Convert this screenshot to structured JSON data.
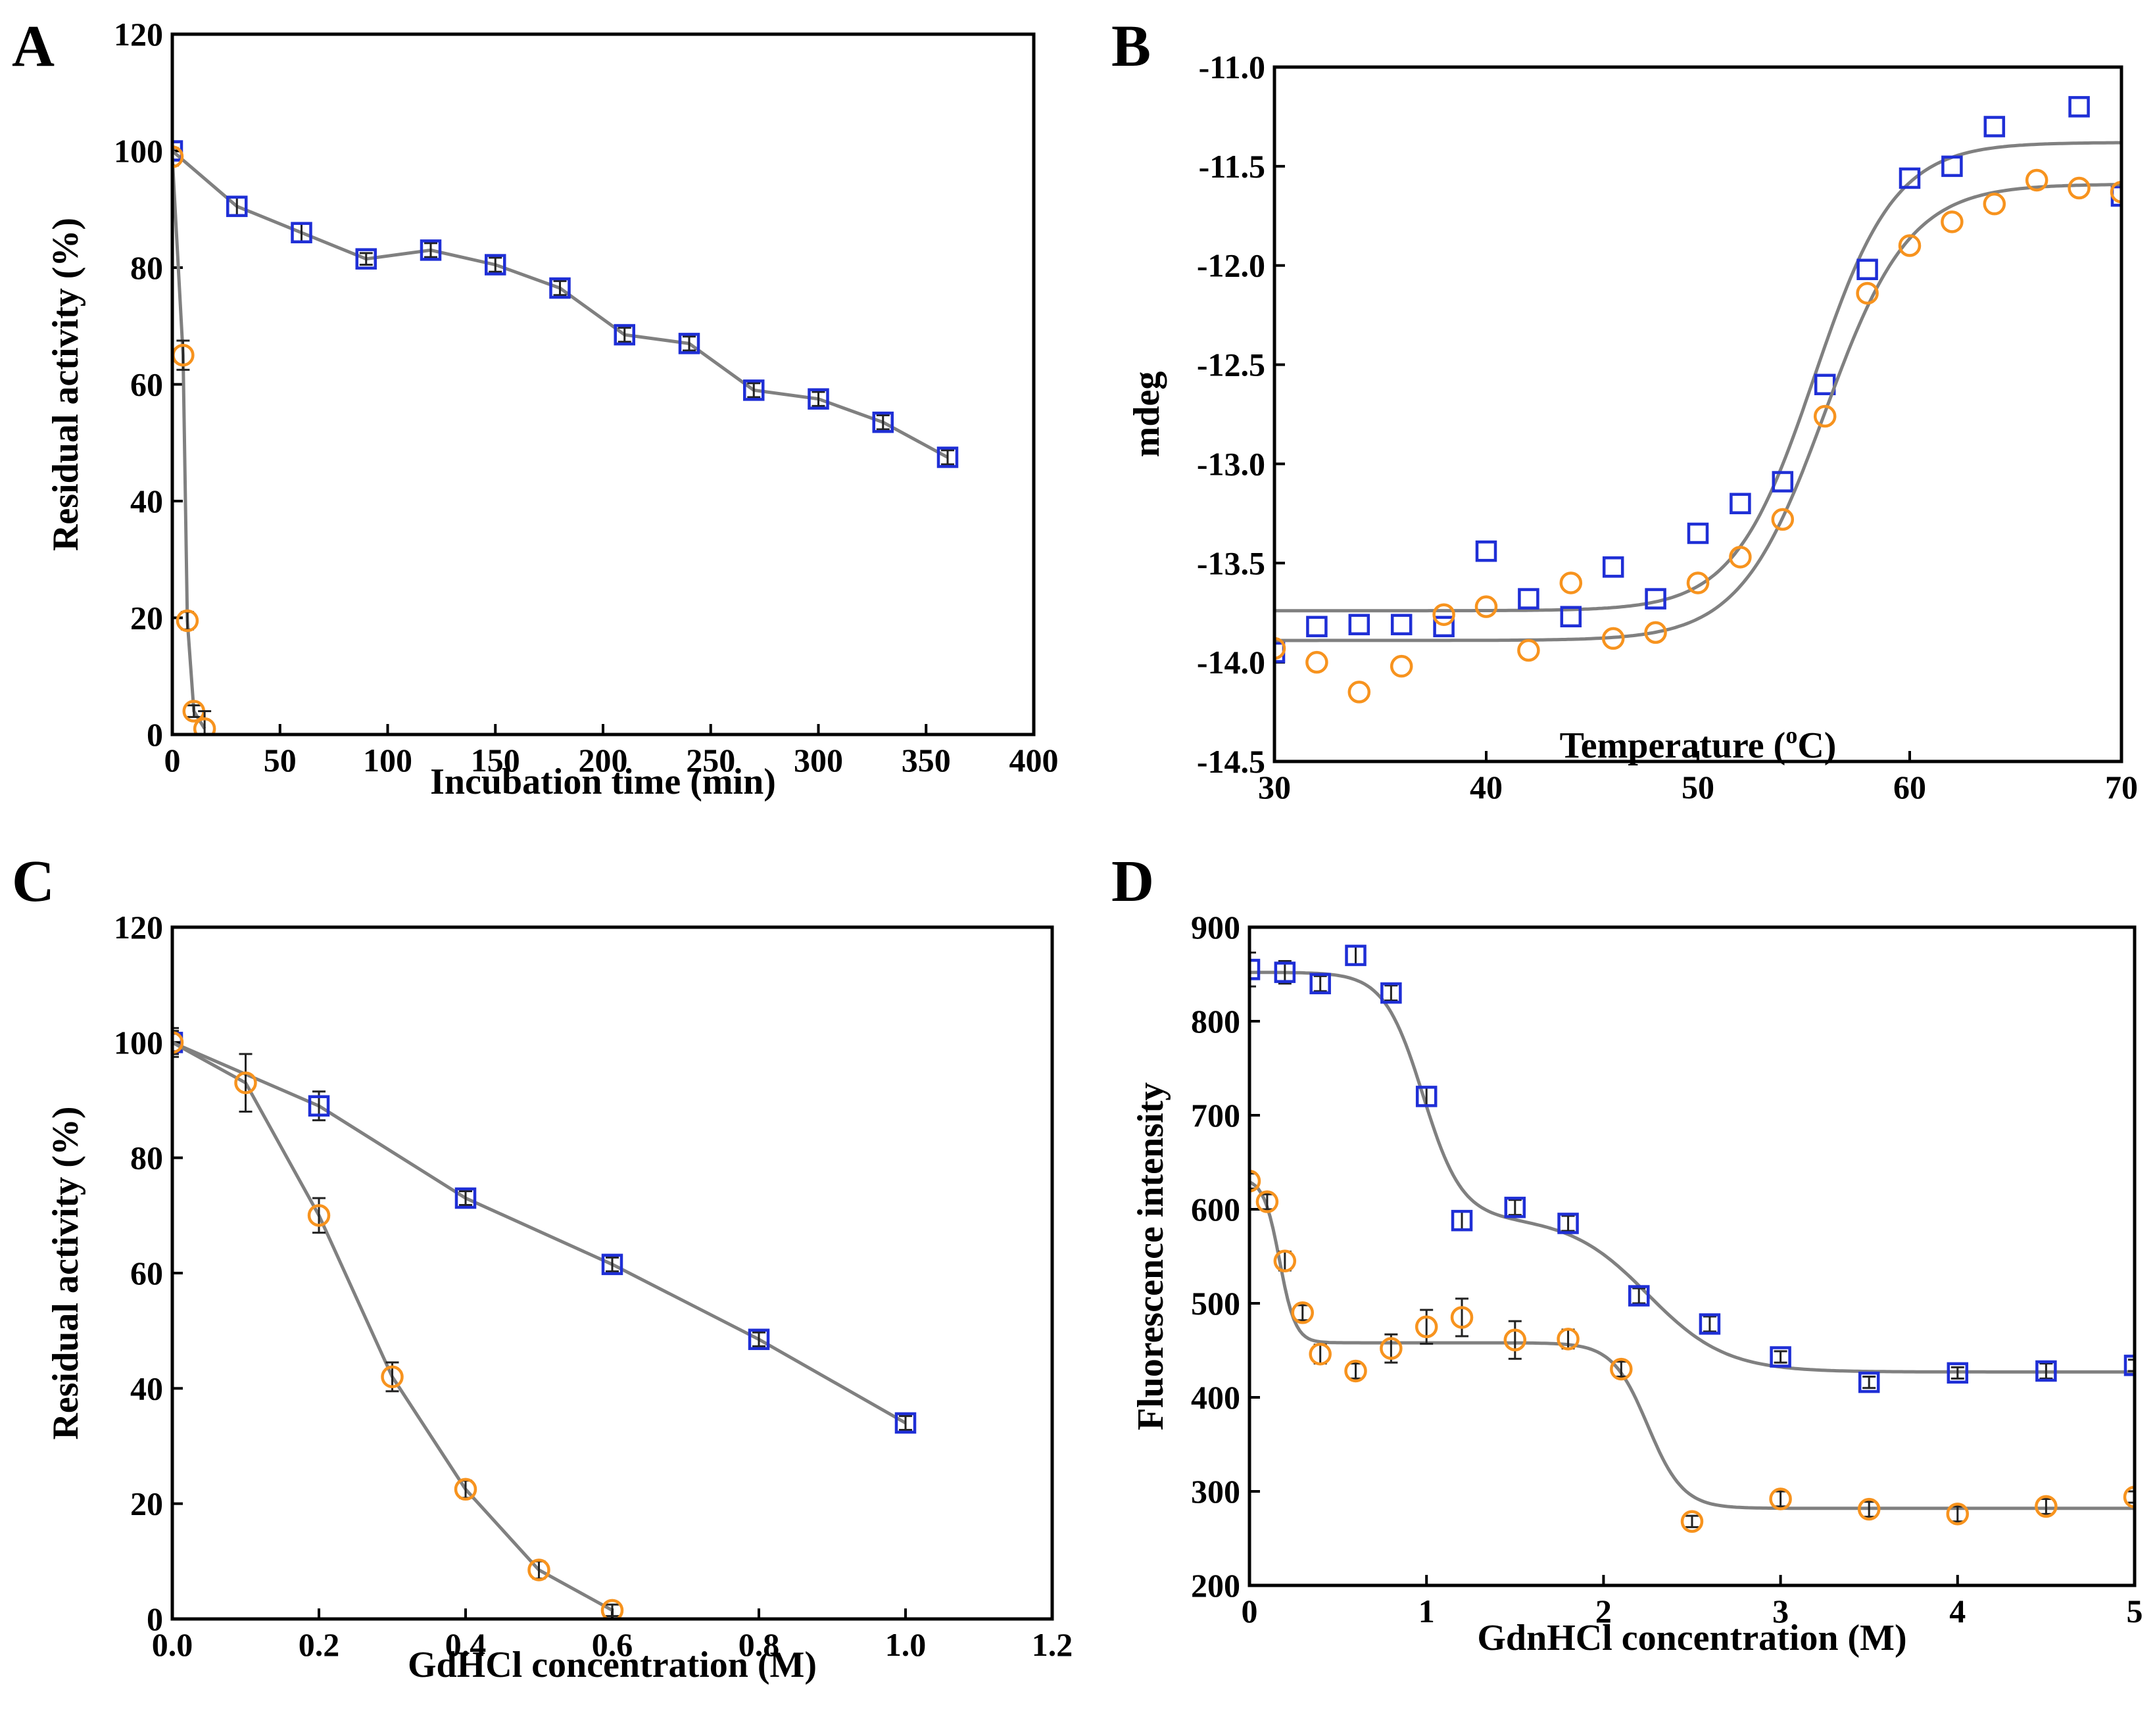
{
  "colors": {
    "series1": "#1f2fd6",
    "series2": "#f7931e",
    "fit": "#808080",
    "errorbar": "#222222"
  },
  "chart_data": [
    {
      "id": "A",
      "panel_label": "A",
      "type": "line",
      "xlabel": "Incubation time (min)",
      "ylabel": "Residual activity (%)",
      "xlim": [
        0,
        400
      ],
      "ylim": [
        0,
        120
      ],
      "xticks": [
        0,
        50,
        100,
        150,
        200,
        250,
        300,
        350,
        400
      ],
      "yticks": [
        0,
        20,
        40,
        60,
        80,
        100,
        120
      ],
      "xtick_labels": [
        "0",
        "50",
        "100",
        "150",
        "200",
        "250",
        "300",
        "350",
        "400"
      ],
      "ytick_labels": [
        "0",
        "20",
        "40",
        "60",
        "80",
        "100",
        "120"
      ],
      "series": [
        {
          "name": "square",
          "marker": "square",
          "color": "#1f2fd6",
          "x": [
            0,
            30,
            60,
            90,
            120,
            150,
            180,
            210,
            240,
            270,
            300,
            330,
            360
          ],
          "y": [
            100,
            90.5,
            86,
            81.5,
            83,
            80.5,
            76.5,
            68.5,
            67,
            59,
            57.5,
            53.5,
            47.5
          ],
          "err": [
            1.5,
            1.5,
            1.5,
            1,
            1.2,
            1.2,
            1.2,
            1.2,
            1.2,
            1.2,
            1.2,
            1.2,
            1.2
          ],
          "connect": true
        },
        {
          "name": "circle",
          "marker": "circle",
          "color": "#f7931e",
          "x": [
            0,
            5,
            7,
            10,
            15
          ],
          "y": [
            99,
            65,
            19.5,
            4,
            1
          ],
          "err": [
            1.5,
            2.5,
            1.5,
            1,
            3
          ],
          "connect": true
        }
      ]
    },
    {
      "id": "B",
      "panel_label": "B",
      "type": "scatter",
      "xlabel_pre": "Temperature (",
      "xlabel_sup": "o",
      "xlabel_post": "C)",
      "ylabel": "mdeg",
      "xlim": [
        30,
        70
      ],
      "ylim": [
        -14.5,
        -11.0
      ],
      "xticks": [
        30,
        40,
        50,
        60,
        70
      ],
      "yticks": [
        -14.5,
        -14.0,
        -13.5,
        -13.0,
        -12.5,
        -12.0,
        -11.5,
        -11.0
      ],
      "xtick_labels": [
        "30",
        "40",
        "50",
        "60",
        "70"
      ],
      "ytick_labels": [
        "-14.5",
        "-14.0",
        "-13.5",
        "-13.0",
        "-12.5",
        "-12.0",
        "-11.5",
        "-11.0"
      ],
      "series": [
        {
          "name": "square",
          "marker": "square",
          "color": "#1f2fd6",
          "x": [
            30,
            32,
            34,
            36,
            38,
            40,
            42,
            44,
            46,
            48,
            50,
            52,
            54,
            56,
            58,
            60,
            62,
            64,
            68,
            70
          ],
          "y": [
            -13.95,
            -13.82,
            -13.81,
            -13.81,
            -13.82,
            -13.44,
            -13.68,
            -13.77,
            -13.52,
            -13.68,
            -13.35,
            -13.2,
            -13.09,
            -12.6,
            -12.02,
            -11.56,
            -11.5,
            -11.3,
            -11.2,
            -11.65
          ],
          "connect": false,
          "fit": {
            "bottom": -13.74,
            "top": -11.38,
            "x0": 55.5,
            "k": 1.9,
            "x_from": 30,
            "x_to": 70
          }
        },
        {
          "name": "circle",
          "marker": "circle",
          "color": "#f7931e",
          "x": [
            30,
            32,
            34,
            36,
            38,
            40,
            42,
            44,
            46,
            48,
            50,
            52,
            54,
            56,
            58,
            60,
            62,
            64,
            66,
            68,
            70
          ],
          "y": [
            -13.93,
            -14.0,
            -14.15,
            -14.02,
            -13.76,
            -13.72,
            -13.94,
            -13.6,
            -13.88,
            -13.85,
            -13.6,
            -13.47,
            -13.28,
            -12.76,
            -12.14,
            -11.9,
            -11.78,
            -11.69,
            -11.57,
            -11.61,
            -11.63
          ],
          "connect": false,
          "fit": {
            "bottom": -13.89,
            "top": -11.59,
            "x0": 56.0,
            "k": 2.0,
            "x_from": 30,
            "x_to": 70
          }
        }
      ]
    },
    {
      "id": "C",
      "panel_label": "C",
      "type": "line",
      "xlabel": "GdHCl concentration (M)",
      "ylabel": "Residual activity (%)",
      "xlim": [
        0,
        1.2
      ],
      "ylim": [
        0,
        120
      ],
      "xticks": [
        0,
        0.2,
        0.4,
        0.6,
        0.8,
        1.0,
        1.2
      ],
      "yticks": [
        0,
        20,
        40,
        60,
        80,
        100,
        120
      ],
      "xtick_labels": [
        "0.0",
        "0.2",
        "0.4",
        "0.6",
        "0.8",
        "1.0",
        "1.2"
      ],
      "ytick_labels": [
        "0",
        "20",
        "40",
        "60",
        "80",
        "100",
        "120"
      ],
      "series": [
        {
          "name": "square",
          "marker": "square",
          "color": "#1f2fd6",
          "x": [
            0,
            0.2,
            0.4,
            0.6,
            0.8,
            1.0
          ],
          "y": [
            100,
            89,
            73,
            61.5,
            48.5,
            34
          ],
          "err": [
            2,
            2.5,
            1.2,
            1.2,
            1.2,
            1.2
          ],
          "connect": true
        },
        {
          "name": "circle",
          "marker": "circle",
          "color": "#f7931e",
          "x": [
            0,
            0.1,
            0.2,
            0.3,
            0.4,
            0.5,
            0.6
          ],
          "y": [
            100,
            93,
            70,
            42,
            22.5,
            8.5,
            1.5
          ],
          "err": [
            2.5,
            5,
            3,
            2.5,
            1.5,
            1.5,
            1
          ],
          "connect": true
        }
      ]
    },
    {
      "id": "D",
      "panel_label": "D",
      "type": "scatter",
      "xlabel": "GdnHCl concentration (M)",
      "ylabel": "Fluorescence intensity",
      "xlim": [
        0,
        5
      ],
      "ylim": [
        200,
        900
      ],
      "xticks": [
        0,
        1,
        2,
        3,
        4,
        5
      ],
      "yticks": [
        200,
        300,
        400,
        500,
        600,
        700,
        800,
        900
      ],
      "xtick_labels": [
        "0",
        "1",
        "2",
        "3",
        "4",
        "5"
      ],
      "ytick_labels": [
        "200",
        "300",
        "400",
        "500",
        "600",
        "700",
        "800",
        "900"
      ],
      "series": [
        {
          "name": "square",
          "marker": "square",
          "color": "#1f2fd6",
          "x": [
            0,
            0.2,
            0.4,
            0.6,
            0.8,
            1.0,
            1.2,
            1.5,
            1.8,
            2.2,
            2.6,
            3.0,
            3.5,
            4.0,
            4.5,
            5.0
          ],
          "y": [
            855,
            852,
            840,
            870,
            830,
            720,
            588,
            602,
            585,
            508,
            478,
            443,
            416,
            426,
            428,
            434
          ],
          "err": [
            18,
            12,
            8,
            10,
            8,
            10,
            10,
            8,
            8,
            8,
            8,
            6,
            6,
            6,
            8,
            6
          ],
          "connect": false,
          "fit2": {
            "top": 852,
            "mid": 592,
            "bottom": 427,
            "x1": 0.98,
            "k1": 0.11,
            "x2": 2.25,
            "k2": 0.22,
            "x_from": 0,
            "x_to": 5
          }
        },
        {
          "name": "circle",
          "marker": "circle",
          "color": "#f7931e",
          "x": [
            0,
            0.1,
            0.2,
            0.3,
            0.4,
            0.6,
            0.8,
            1.0,
            1.2,
            1.5,
            1.8,
            2.1,
            2.5,
            3.0,
            3.5,
            4.0,
            4.5,
            5.0
          ],
          "y": [
            630,
            608,
            545,
            490,
            446,
            428,
            452,
            475,
            485,
            461,
            462,
            430,
            268,
            292,
            281,
            276,
            284,
            294
          ],
          "err": [
            8,
            8,
            10,
            8,
            10,
            8,
            15,
            18,
            20,
            20,
            10,
            8,
            6,
            8,
            8,
            8,
            8,
            6
          ],
          "connect": false,
          "fit2": {
            "top": 633,
            "mid": 458,
            "bottom": 282,
            "x1": 0.17,
            "k1": 0.045,
            "x2": 2.25,
            "k2": 0.1,
            "x_from": 0,
            "x_to": 5
          }
        }
      ]
    }
  ]
}
